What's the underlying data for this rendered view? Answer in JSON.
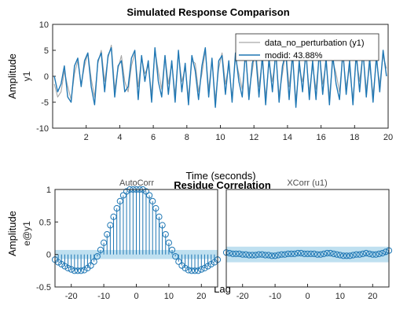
{
  "colors": {
    "measured": "#a6a6a6",
    "model": "#1f77b4",
    "band": "#bfe0f0",
    "stem": "#1f77b4",
    "axes": "#262626"
  },
  "chart_data": [
    {
      "type": "line",
      "title": "Simulated Response Comparison",
      "xlabel": "Time (seconds)",
      "ylabel": "Amplitude",
      "ylabel2": "y1",
      "xlim": [
        0,
        20
      ],
      "ylim": [
        -10,
        10
      ],
      "xticks": [
        2,
        4,
        6,
        8,
        10,
        12,
        14,
        16,
        18,
        20
      ],
      "yticks": [
        -10,
        -5,
        0,
        5,
        10
      ],
      "grid": false,
      "legend_position": "top-right",
      "series": [
        {
          "name": "data_no_perturbation (y1)",
          "x": [
            0.1,
            0.3,
            0.5,
            0.7,
            0.9,
            1.1,
            1.3,
            1.5,
            1.7,
            1.9,
            2.1,
            2.3,
            2.5,
            2.7,
            2.9,
            3.1,
            3.3,
            3.5,
            3.7,
            3.9,
            4.1,
            4.3,
            4.5,
            4.7,
            4.9,
            5.1,
            5.3,
            5.5,
            5.7,
            5.9,
            6.1,
            6.3,
            6.5,
            6.7,
            6.9,
            7.1,
            7.3,
            7.5,
            7.7,
            7.9,
            8.1,
            8.3,
            8.5,
            8.7,
            8.9,
            9.1,
            9.3,
            9.5,
            9.7,
            9.9,
            10.1,
            10.3,
            10.5,
            10.7,
            10.9,
            11.1,
            11.3,
            11.5,
            11.7,
            11.9,
            12.1,
            12.3,
            12.5,
            12.7,
            12.9,
            13.1,
            13.3,
            13.5,
            13.7,
            13.9,
            14.1,
            14.3,
            14.5,
            14.7,
            14.9,
            15.1,
            15.3,
            15.5,
            15.7,
            15.9,
            16.1,
            16.3,
            16.5,
            16.7,
            16.9,
            17.1,
            17.3,
            17.5,
            17.7,
            17.9,
            18.1,
            18.3,
            18.5,
            18.7,
            18.9,
            19.1,
            19.3,
            19.5,
            19.7,
            19.9
          ],
          "values": [
            -1.5,
            -4,
            -3,
            1,
            -2,
            -4.5,
            0.5,
            3,
            -1.5,
            2,
            4.5,
            -0.5,
            -4,
            2.5,
            5,
            -1,
            3.5,
            6,
            -2.5,
            1.5,
            4,
            -1,
            -3,
            2,
            4.5,
            -2,
            3.5,
            0.5,
            2,
            -3.5,
            5,
            1,
            -2.5,
            4,
            -1.5,
            2.5,
            -3.5,
            4.5,
            -1,
            1.5,
            -4,
            3,
            2.5,
            -3,
            0.5,
            5,
            -2.5,
            3,
            -4.5,
            1.5,
            4.5,
            -1.5,
            2,
            -4,
            3.5,
            0.5,
            -2.5,
            4,
            -3,
            1,
            5.5,
            -2,
            3,
            -4,
            2.5,
            -1,
            4,
            -3.5,
            0.5,
            5,
            -2,
            3.5,
            -4.5,
            1.5,
            -1,
            4,
            -3,
            2,
            -2.5,
            4.5,
            -1.5,
            2.5,
            -4,
            3,
            0.5,
            -3,
            4,
            -2,
            1.5,
            -4.5,
            3.5,
            -1,
            4.5,
            -2.5,
            2,
            -3.5,
            3,
            -1.5,
            4,
            1.5
          ]
        },
        {
          "name": "modid: 43.88%",
          "x": [
            0.1,
            0.3,
            0.5,
            0.7,
            0.9,
            1.1,
            1.3,
            1.5,
            1.7,
            1.9,
            2.1,
            2.3,
            2.5,
            2.7,
            2.9,
            3.1,
            3.3,
            3.5,
            3.7,
            3.9,
            4.1,
            4.3,
            4.5,
            4.7,
            4.9,
            5.1,
            5.3,
            5.5,
            5.7,
            5.9,
            6.1,
            6.3,
            6.5,
            6.7,
            6.9,
            7.1,
            7.3,
            7.5,
            7.7,
            7.9,
            8.1,
            8.3,
            8.5,
            8.7,
            8.9,
            9.1,
            9.3,
            9.5,
            9.7,
            9.9,
            10.1,
            10.3,
            10.5,
            10.7,
            10.9,
            11.1,
            11.3,
            11.5,
            11.7,
            11.9,
            12.1,
            12.3,
            12.5,
            12.7,
            12.9,
            13.1,
            13.3,
            13.5,
            13.7,
            13.9,
            14.1,
            14.3,
            14.5,
            14.7,
            14.9,
            15.1,
            15.3,
            15.5,
            15.7,
            15.9,
            16.1,
            16.3,
            16.5,
            16.7,
            16.9,
            17.1,
            17.3,
            17.5,
            17.7,
            17.9,
            18.1,
            18.3,
            18.5,
            18.7,
            18.9,
            19.1,
            19.3,
            19.5,
            19.7,
            19.9
          ],
          "values": [
            0,
            -3,
            -1.5,
            2,
            -4,
            -5,
            2,
            3.5,
            -2,
            3,
            4.5,
            -2,
            -5.5,
            3,
            4.5,
            -3,
            4,
            5.5,
            -4,
            2,
            3,
            -3,
            -2,
            3.5,
            5,
            -4.5,
            4,
            -1,
            3,
            -5,
            5.5,
            -1,
            -4,
            4,
            -3.5,
            3,
            -5,
            5,
            -3,
            2.5,
            -5.5,
            4,
            1,
            -4.5,
            2,
            5.5,
            -4,
            3.5,
            -6,
            3,
            4,
            -3.5,
            3,
            -5,
            4.5,
            -1,
            -4,
            5,
            -4.5,
            2.5,
            4.5,
            -4,
            4,
            -5.5,
            3.5,
            -3,
            5,
            -5,
            2,
            4.5,
            -4.5,
            4.5,
            -6,
            3,
            -3,
            5,
            -4.5,
            3,
            -4.5,
            5,
            -3.5,
            3.5,
            -5.5,
            4,
            -1.5,
            -4.5,
            5,
            -3.5,
            3,
            -5.5,
            4.5,
            -3,
            5,
            -4,
            3.5,
            -5,
            4,
            -3,
            5,
            0
          ]
        }
      ]
    },
    {
      "type": "bar",
      "title": "Residue Correlation",
      "subtitle": "AutoCorr",
      "xlabel": "Lag",
      "ylabel": "Amplitude",
      "ylabel2": "e@y1",
      "xlim": [
        -25,
        25
      ],
      "ylim": [
        -0.5,
        1
      ],
      "xticks": [
        -20,
        -10,
        0,
        10,
        20
      ],
      "yticks": [
        -0.5,
        0,
        0.5,
        1
      ],
      "confidence_band": [
        -0.07,
        0.07
      ],
      "x": [
        -25,
        -24,
        -23,
        -22,
        -21,
        -20,
        -19,
        -18,
        -17,
        -16,
        -15,
        -14,
        -13,
        -12,
        -11,
        -10,
        -9,
        -8,
        -7,
        -6,
        -5,
        -4,
        -3,
        -2,
        -1,
        0,
        1,
        2,
        3,
        4,
        5,
        6,
        7,
        8,
        9,
        10,
        11,
        12,
        13,
        14,
        15,
        16,
        17,
        18,
        19,
        20,
        21,
        22,
        23,
        24,
        25
      ],
      "values": [
        -0.08,
        -0.12,
        -0.15,
        -0.18,
        -0.21,
        -0.23,
        -0.25,
        -0.25,
        -0.25,
        -0.24,
        -0.21,
        -0.17,
        -0.11,
        -0.03,
        0.07,
        0.18,
        0.31,
        0.45,
        0.58,
        0.71,
        0.82,
        0.91,
        0.97,
        1,
        1,
        1,
        1,
        1,
        0.97,
        0.91,
        0.82,
        0.71,
        0.58,
        0.45,
        0.31,
        0.18,
        0.07,
        -0.03,
        -0.11,
        -0.17,
        -0.21,
        -0.24,
        -0.25,
        -0.25,
        -0.25,
        -0.23,
        -0.21,
        -0.18,
        -0.15,
        -0.12,
        -0.08
      ]
    },
    {
      "type": "bar",
      "subtitle": "XCorr (u1)",
      "xlabel": "",
      "xlim": [
        -25,
        25
      ],
      "ylim": [
        -0.5,
        1
      ],
      "xticks": [
        -20,
        -10,
        0,
        10,
        20
      ],
      "confidence_band": [
        -0.12,
        0.12
      ],
      "x": [
        -25,
        -24,
        -23,
        -22,
        -21,
        -20,
        -19,
        -18,
        -17,
        -16,
        -15,
        -14,
        -13,
        -12,
        -11,
        -10,
        -9,
        -8,
        -7,
        -6,
        -5,
        -4,
        -3,
        -2,
        -1,
        0,
        1,
        2,
        3,
        4,
        5,
        6,
        7,
        8,
        9,
        10,
        11,
        12,
        13,
        14,
        15,
        16,
        17,
        18,
        19,
        20,
        21,
        22,
        23,
        24,
        25
      ],
      "values": [
        0.03,
        0.02,
        0.01,
        0.01,
        0.01,
        0,
        0,
        -0.01,
        -0.01,
        -0.01,
        0,
        0,
        -0.01,
        -0.01,
        -0.02,
        -0.02,
        -0.01,
        0,
        0,
        0.01,
        0.01,
        0.01,
        0.02,
        0.02,
        0.01,
        0.01,
        0.01,
        0.01,
        0,
        0,
        0.01,
        0.02,
        0.02,
        0.01,
        0,
        -0.01,
        -0.02,
        -0.02,
        -0.02,
        -0.01,
        0,
        0,
        0.01,
        0.02,
        0.01,
        0,
        0,
        0.01,
        0.02,
        0.04,
        0.06
      ]
    }
  ]
}
